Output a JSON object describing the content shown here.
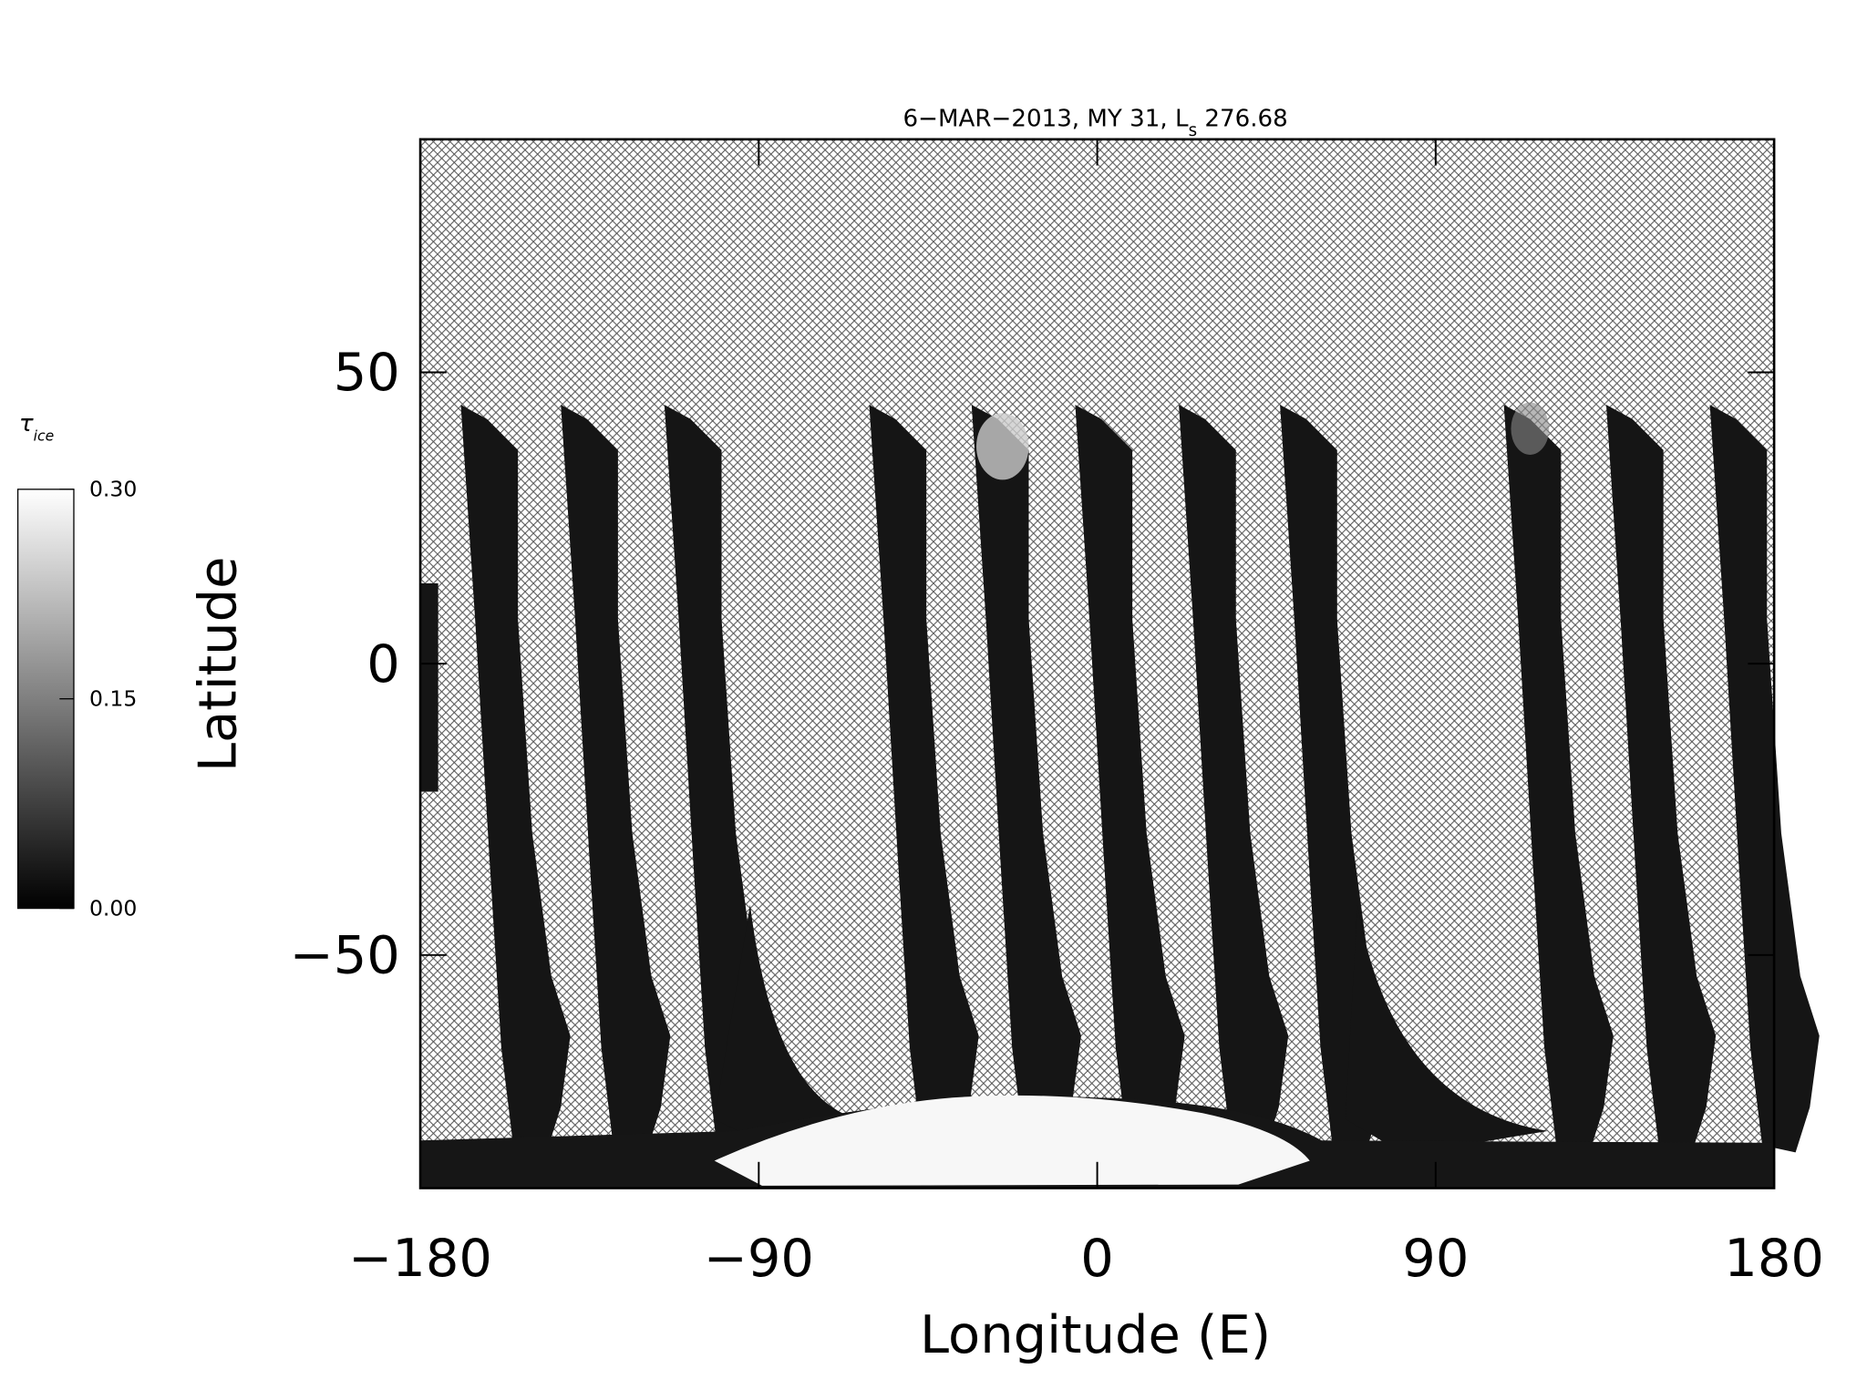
{
  "chart_data": {
    "type": "image",
    "title": [
      "6−MAR−2013, MY 31,  L",
      "s",
      " 276.68"
    ],
    "xlabel": "Longitude (E)",
    "ylabel": "Latitude",
    "xlim": [
      -180,
      180
    ],
    "xticks": [
      {
        "value": -180,
        "label": "−180"
      },
      {
        "value": -90,
        "label": "−90"
      },
      0,
      90,
      180
    ],
    "ylim": [
      -90,
      90
    ],
    "yticks": [
      {
        "value": -50,
        "label": "−50"
      },
      0,
      50
    ],
    "colorbar": {
      "label": [
        "τ",
        "ice"
      ],
      "lim": [
        0,
        0.3
      ],
      "ticks": [
        {
          "value": 0,
          "label": "0.00"
        },
        {
          "value": 0.15,
          "label": "0.15"
        },
        {
          "value": 0.3,
          "label": "0.30"
        }
      ],
      "colors": [
        "#000000",
        "#ffffff"
      ]
    }
  }
}
